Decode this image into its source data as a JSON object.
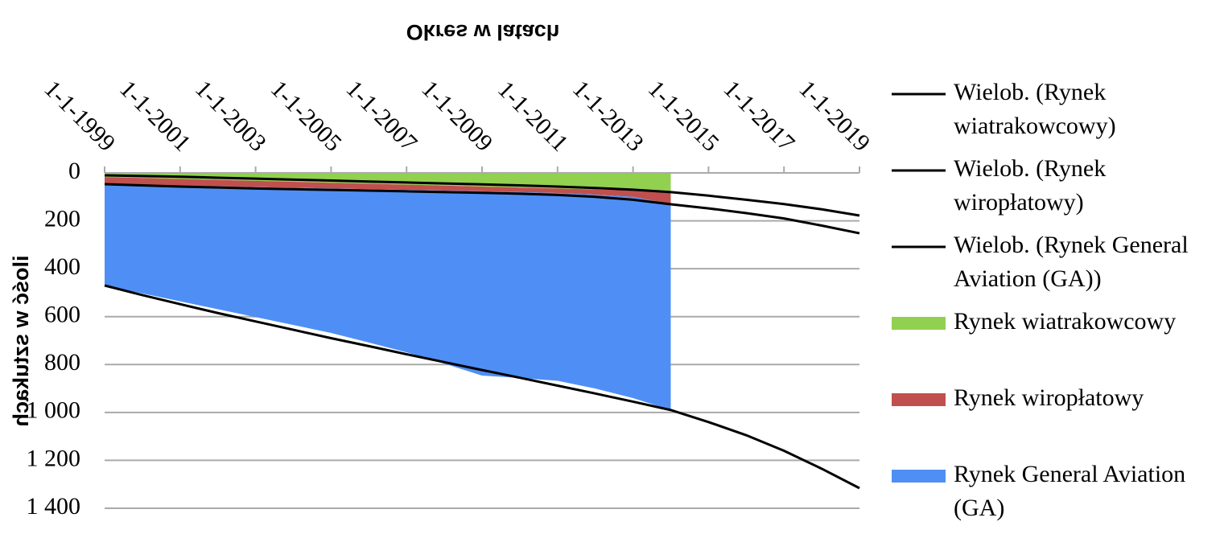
{
  "chart_data": {
    "type": "stacked_area",
    "x_title": "Okres w latach",
    "y_title": "ilość w sztukach",
    "x": [
      1999,
      2000,
      2001,
      2002,
      2003,
      2004,
      2005,
      2006,
      2007,
      2008,
      2009,
      2010,
      2011,
      2012,
      2013,
      2014
    ],
    "series": [
      {
        "name": "Rynek wiatrakowcowy",
        "color": "#92d050",
        "values": [
          17,
          21,
          25,
          29,
          33,
          37,
          41,
          45,
          49,
          53,
          57,
          61,
          65,
          69,
          73,
          77
        ]
      },
      {
        "name": "Rynek wiropłatowy",
        "color": "#c0504d",
        "values": [
          30,
          29,
          28,
          27,
          26,
          25,
          24,
          23,
          22,
          21,
          20,
          19,
          19,
          22,
          27,
          54
        ]
      },
      {
        "name": "Rynek General Aviation (GA)",
        "color": "#4f8ff5",
        "values": [
          423,
          453,
          483,
          513,
          543,
          573,
          603,
          640,
          678,
          722,
          769,
          776,
          784,
          809,
          840,
          859
        ]
      }
    ],
    "trend_x": [
      1999,
      2000,
      2001,
      2002,
      2003,
      2004,
      2005,
      2006,
      2007,
      2008,
      2009,
      2010,
      2011,
      2012,
      2013,
      2014,
      2015,
      2016,
      2017,
      2018,
      2019
    ],
    "trendlines": [
      {
        "name": "Wielob. (Rynek General Aviation (GA))",
        "color": "#000000",
        "values": [
          470,
          510,
          548,
          585,
          620,
          655,
          690,
          723,
          757,
          790,
          823,
          855,
          888,
          921,
          955,
          990,
          1040,
          1095,
          1160,
          1235,
          1316
        ]
      },
      {
        "name": "Wielob. (Rynek wiropłatowy)",
        "color": "#000000",
        "values": [
          47,
          52,
          57,
          61,
          65,
          68,
          71,
          74,
          77,
          80,
          83,
          87,
          92,
          100,
          112,
          131,
          148,
          168,
          190,
          220,
          252
        ]
      },
      {
        "name": "Wielob. (Rynek wiatrakowcowy)",
        "color": "#000000",
        "values": [
          10,
          13,
          16,
          20,
          24,
          28,
          32,
          36,
          40,
          44,
          48,
          52,
          57,
          63,
          70,
          80,
          95,
          112,
          130,
          152,
          178
        ]
      }
    ],
    "xlim": [
      1999,
      2019
    ],
    "xticks": [
      {
        "value": 1999,
        "label": "1-1-1999"
      },
      {
        "value": 2001,
        "label": "1-1-2001"
      },
      {
        "value": 2003,
        "label": "1-1-2003"
      },
      {
        "value": 2005,
        "label": "1-1-2005"
      },
      {
        "value": 2007,
        "label": "1-1-2007"
      },
      {
        "value": 2009,
        "label": "1-1-2009"
      },
      {
        "value": 2011,
        "label": "1-1-2011"
      },
      {
        "value": 2013,
        "label": "1-1-2013"
      },
      {
        "value": 2015,
        "label": "1-1-2015"
      },
      {
        "value": 2017,
        "label": "1-1-2017"
      },
      {
        "value": 2019,
        "label": "1-1-2019"
      }
    ],
    "ylim": [
      0,
      1400
    ],
    "yticks": [
      0,
      200,
      400,
      600,
      800,
      {
        "value": 1000,
        "label": "1 000"
      },
      {
        "value": 1200,
        "label": "1 200"
      },
      {
        "value": 1400,
        "label": "1 400"
      }
    ],
    "grid": true,
    "legend": "right",
    "flipped_vertically": true
  }
}
